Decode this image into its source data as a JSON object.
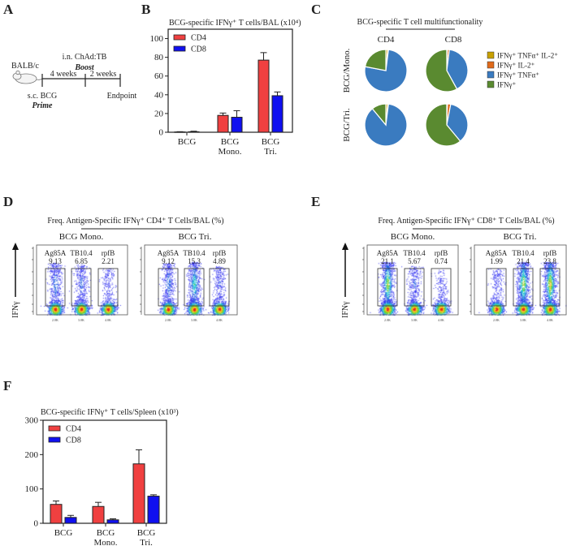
{
  "panels": {
    "A": "A",
    "B": "B",
    "C": "C",
    "D": "D",
    "E": "E",
    "F": "F"
  },
  "schematic": {
    "strain": "BALB/c",
    "interval1": "4 weeks",
    "interval2": "2 weeks",
    "boost_route": "i.n. ChAd:TB",
    "boost_label": "Boost",
    "prime_route": "s.c. BCG",
    "prime_label": "Prime",
    "endpoint": "Endpoint"
  },
  "colors": {
    "cd4": "#f04040",
    "cd8": "#1010f0",
    "gold": "#c8a000",
    "orange": "#e06a1a",
    "blue": "#3a7bc0",
    "green": "#5a8a30"
  },
  "chart_data": [
    {
      "id": "B",
      "type": "bar",
      "title": "BCG-specific IFNγ⁺ T cells/BAL (x10⁴)",
      "categories": [
        [
          "BCG"
        ],
        [
          "BCG",
          "Mono."
        ],
        [
          "BCG",
          "Tri."
        ]
      ],
      "ylim": [
        0,
        110
      ],
      "yticks": [
        0,
        20,
        40,
        60,
        80,
        100
      ],
      "legend": "top-left",
      "series": [
        {
          "name": "CD4",
          "values": [
            0.3,
            18,
            77
          ],
          "errors": [
            0.3,
            2.5,
            8
          ]
        },
        {
          "name": "CD8",
          "values": [
            0.5,
            16,
            39
          ],
          "errors": [
            0.6,
            7,
            4
          ]
        }
      ]
    },
    {
      "id": "F",
      "type": "bar",
      "title": "BCG-specific IFNγ⁺ T cells/Spleen (x10³)",
      "categories": [
        [
          "BCG"
        ],
        [
          "BCG",
          "Mono."
        ],
        [
          "BCG",
          "Tri."
        ]
      ],
      "ylim": [
        0,
        300
      ],
      "yticks": [
        0,
        100,
        200,
        300
      ],
      "legend": "top-left",
      "series": [
        {
          "name": "CD4",
          "values": [
            55,
            49,
            173
          ],
          "errors": [
            10,
            12,
            41
          ]
        },
        {
          "name": "CD8",
          "values": [
            17,
            10,
            79
          ],
          "errors": [
            6,
            3,
            4
          ]
        }
      ]
    },
    {
      "id": "C",
      "type": "pie",
      "title": "BCG-specific T cell multifunctionality",
      "columns": [
        "CD4",
        "CD8"
      ],
      "rows": [
        "BCG/Mono.",
        "BCG/Tri."
      ],
      "legend_entries": [
        "IFNγ⁺ TNFα⁺ IL-2⁺",
        "IFNγ⁺ IL-2⁺",
        "IFNγ⁺ TNFα⁺",
        "IFNγ⁺"
      ],
      "pies": [
        {
          "row": "BCG/Mono.",
          "col": "CD4",
          "values": [
            1.5,
            0.5,
            76,
            22
          ]
        },
        {
          "row": "BCG/Mono.",
          "col": "CD8",
          "values": [
            0.5,
            1.5,
            40,
            58
          ]
        },
        {
          "row": "BCG/Tri.",
          "col": "CD4",
          "values": [
            1.5,
            0.5,
            87,
            11
          ]
        },
        {
          "row": "BCG/Tri.",
          "col": "CD8",
          "values": [
            0.5,
            2.5,
            36,
            61
          ]
        }
      ]
    },
    {
      "id": "D",
      "type": "scatter",
      "title": "Freq. Antigen-Specific IFNγ⁺ CD4⁺ T Cells/BAL (%)",
      "ylabel": "IFNγ",
      "xticks": [
        "2.0K",
        "3.0K",
        "4.0K"
      ],
      "groups": [
        {
          "name": "BCG Mono.",
          "antigens": [
            "Ag85A",
            "TB10.4",
            "rpfB"
          ],
          "freqs": [
            "9.13",
            "6.85",
            "2.21"
          ]
        },
        {
          "name": "BCG Tri.",
          "antigens": [
            "Ag85A",
            "TB10.4",
            "rpfB"
          ],
          "freqs": [
            "9.12",
            "15.3",
            "4.89"
          ]
        }
      ]
    },
    {
      "id": "E",
      "type": "scatter",
      "title": "Freq. Antigen-Specific IFNγ⁺ CD8⁺ T Cells/BAL (%)",
      "ylabel": "IFNγ",
      "xticks": [
        "2.0K",
        "3.0K",
        "4.0K"
      ],
      "groups": [
        {
          "name": "BCG Mono.",
          "antigens": [
            "Ag85A",
            "TB10.4",
            "rpfB"
          ],
          "freqs": [
            "21.1",
            "5.67",
            "0.74"
          ]
        },
        {
          "name": "BCG Tri.",
          "antigens": [
            "Ag85A",
            "TB10.4",
            "rpfB"
          ],
          "freqs": [
            "1.99",
            "21.4",
            "23.8"
          ]
        }
      ]
    }
  ]
}
